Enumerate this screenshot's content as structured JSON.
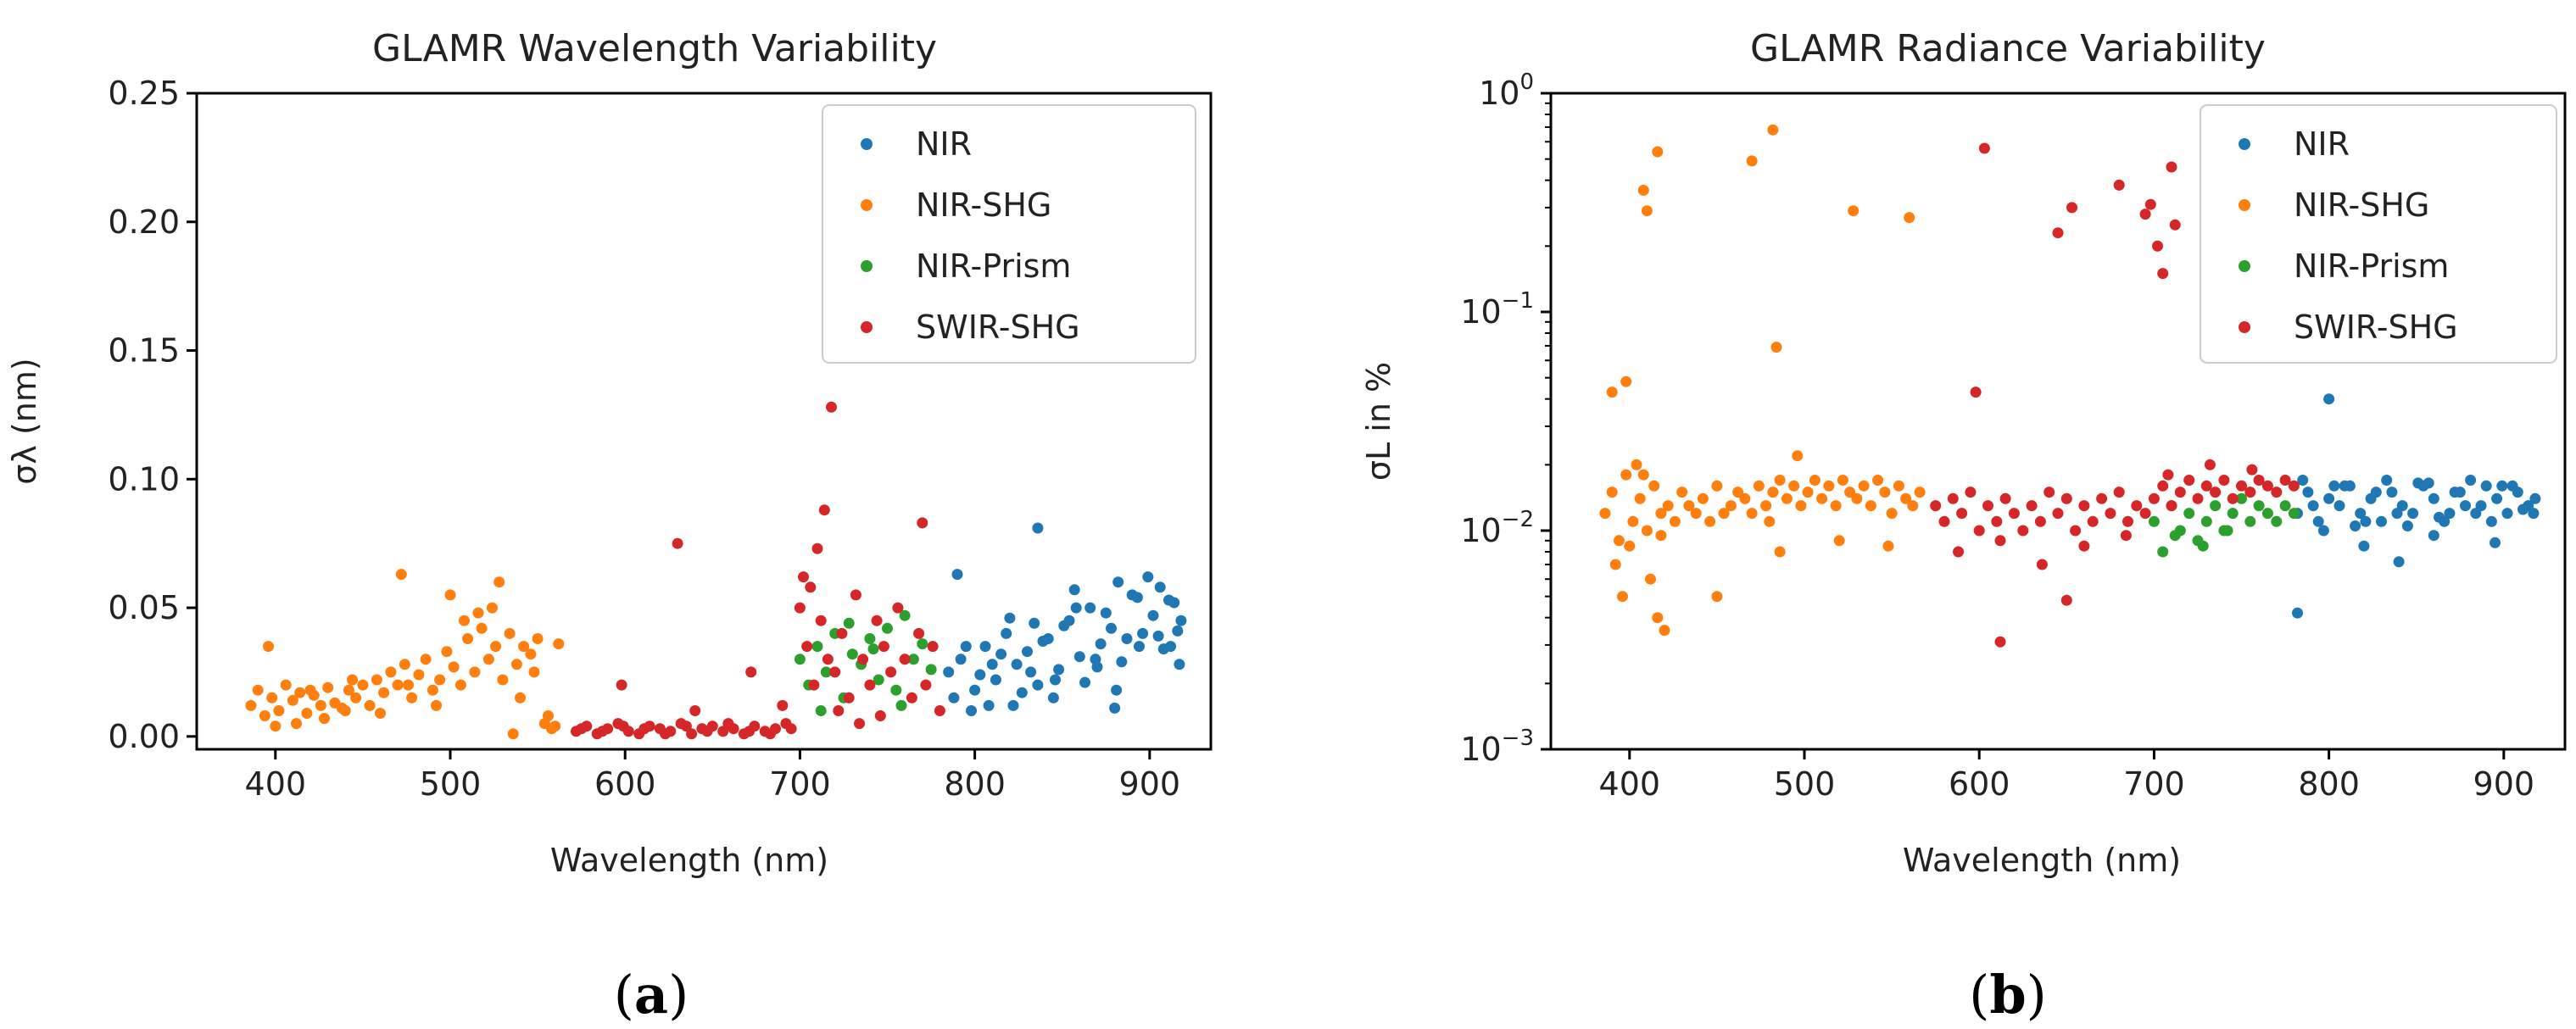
{
  "panels": [
    {
      "caption_open": "(",
      "caption_letter": "a",
      "caption_close": ")"
    },
    {
      "caption_open": "(",
      "caption_letter": "b",
      "caption_close": ")"
    }
  ],
  "chart_data": [
    {
      "type": "scatter",
      "title": "GLAMR Wavelength Variability",
      "xlabel": "Wavelength (nm)",
      "ylabel": "σλ (nm)",
      "xlim": [
        355,
        935
      ],
      "ylim": [
        -0.005,
        0.25
      ],
      "xticks": [
        400,
        500,
        600,
        700,
        800,
        900
      ],
      "yticks": [
        0.0,
        0.05,
        0.1,
        0.15,
        0.2,
        0.25
      ],
      "ytick_labels": [
        "0.00",
        "0.05",
        "0.10",
        "0.15",
        "0.20",
        "0.25"
      ],
      "legend_position": "top-right",
      "series": [
        {
          "name": "NIR",
          "color": "#1f77b4",
          "x": [
            785,
            792,
            800,
            806,
            812,
            818,
            824,
            830,
            836,
            842,
            848,
            854,
            860,
            866,
            872,
            878,
            884,
            890,
            896,
            902,
            908,
            914,
            918,
            788,
            798,
            810,
            822,
            834,
            846,
            858,
            870,
            882,
            894,
            906,
            916,
            803,
            815,
            827,
            839,
            851,
            863,
            875,
            887,
            899,
            911,
            795,
            808,
            820,
            832,
            845,
            857,
            869,
            881,
            893,
            905,
            917,
            836,
            790,
            880,
            912
          ],
          "y": [
            0.025,
            0.03,
            0.018,
            0.035,
            0.022,
            0.04,
            0.028,
            0.033,
            0.02,
            0.038,
            0.026,
            0.045,
            0.031,
            0.05,
            0.036,
            0.042,
            0.029,
            0.055,
            0.04,
            0.047,
            0.034,
            0.052,
            0.045,
            0.015,
            0.01,
            0.028,
            0.012,
            0.044,
            0.022,
            0.05,
            0.027,
            0.06,
            0.035,
            0.058,
            0.041,
            0.024,
            0.032,
            0.017,
            0.037,
            0.043,
            0.021,
            0.048,
            0.038,
            0.062,
            0.053,
            0.035,
            0.012,
            0.046,
            0.025,
            0.015,
            0.057,
            0.03,
            0.018,
            0.054,
            0.039,
            0.028,
            0.081,
            0.063,
            0.011,
            0.035
          ]
        },
        {
          "name": "NIR-SHG",
          "color": "#ff7f0e",
          "x": [
            386,
            390,
            394,
            398,
            402,
            406,
            410,
            414,
            418,
            422,
            426,
            430,
            434,
            438,
            442,
            446,
            450,
            454,
            458,
            462,
            466,
            470,
            474,
            478,
            482,
            486,
            490,
            494,
            498,
            502,
            506,
            510,
            514,
            518,
            522,
            526,
            530,
            534,
            538,
            542,
            546,
            550,
            554,
            558,
            562,
            396,
            412,
            428,
            444,
            460,
            476,
            492,
            508,
            524,
            540,
            556,
            400,
            420,
            440,
            472,
            500,
            516,
            528,
            536,
            548,
            560
          ],
          "y": [
            0.012,
            0.018,
            0.008,
            0.015,
            0.01,
            0.02,
            0.014,
            0.017,
            0.009,
            0.016,
            0.012,
            0.019,
            0.013,
            0.011,
            0.018,
            0.015,
            0.02,
            0.012,
            0.022,
            0.017,
            0.025,
            0.02,
            0.028,
            0.015,
            0.024,
            0.03,
            0.018,
            0.022,
            0.033,
            0.027,
            0.02,
            0.038,
            0.025,
            0.042,
            0.03,
            0.035,
            0.022,
            0.04,
            0.028,
            0.035,
            0.032,
            0.038,
            0.005,
            0.003,
            0.036,
            0.035,
            0.005,
            0.007,
            0.022,
            0.009,
            0.02,
            0.012,
            0.045,
            0.05,
            0.015,
            0.008,
            0.004,
            0.018,
            0.01,
            0.063,
            0.055,
            0.048,
            0.06,
            0.001,
            0.025,
            0.004
          ]
        },
        {
          "name": "NIR-Prism",
          "color": "#2ca02c",
          "x": [
            700,
            705,
            710,
            715,
            720,
            725,
            730,
            735,
            740,
            745,
            750,
            755,
            760,
            765,
            770,
            775,
            712,
            728,
            742,
            758
          ],
          "y": [
            0.03,
            0.02,
            0.035,
            0.025,
            0.04,
            0.015,
            0.032,
            0.028,
            0.038,
            0.022,
            0.042,
            0.018,
            0.047,
            0.03,
            0.036,
            0.026,
            0.01,
            0.044,
            0.034,
            0.012
          ]
        },
        {
          "name": "SWIR-SHG",
          "color": "#d62728",
          "x": [
            572,
            578,
            584,
            590,
            596,
            602,
            608,
            614,
            620,
            626,
            632,
            638,
            644,
            650,
            656,
            662,
            668,
            674,
            680,
            686,
            692,
            575,
            587,
            599,
            611,
            623,
            635,
            647,
            659,
            671,
            683,
            695,
            630,
            598,
            640,
            672,
            690,
            700,
            704,
            708,
            712,
            716,
            720,
            724,
            728,
            732,
            736,
            740,
            744,
            748,
            752,
            756,
            760,
            764,
            768,
            772,
            776,
            780,
            710,
            714,
            718,
            702,
            706,
            722,
            734,
            746,
            770
          ],
          "y": [
            0.002,
            0.004,
            0.001,
            0.003,
            0.005,
            0.002,
            0.001,
            0.004,
            0.003,
            0.002,
            0.005,
            0.001,
            0.003,
            0.004,
            0.002,
            0.003,
            0.001,
            0.004,
            0.002,
            0.003,
            0.005,
            0.003,
            0.002,
            0.004,
            0.003,
            0.001,
            0.004,
            0.002,
            0.005,
            0.002,
            0.001,
            0.003,
            0.075,
            0.02,
            0.01,
            0.025,
            0.012,
            0.05,
            0.035,
            0.02,
            0.045,
            0.03,
            0.025,
            0.04,
            0.015,
            0.055,
            0.03,
            0.02,
            0.045,
            0.035,
            0.025,
            0.05,
            0.03,
            0.015,
            0.04,
            0.02,
            0.035,
            0.01,
            0.073,
            0.088,
            0.128,
            0.062,
            0.058,
            0.01,
            0.005,
            0.008,
            0.083
          ]
        }
      ]
    },
    {
      "type": "scatter",
      "title": "GLAMR Radiance Variability",
      "xlabel": "Wavelength (nm)",
      "ylabel": "σL in %",
      "xscale": "linear",
      "yscale": "log",
      "xlim": [
        355,
        935
      ],
      "ylim": [
        0.001,
        1
      ],
      "xticks": [
        400,
        500,
        600,
        700,
        800,
        900
      ],
      "yticks": [
        0.001,
        0.01,
        0.1,
        1
      ],
      "ytick_bases": [
        "10",
        "10",
        "10",
        "10"
      ],
      "ytick_exps": [
        "−3",
        "−2",
        "−1",
        "0"
      ],
      "legend_position": "top-right",
      "series": [
        {
          "name": "NIR",
          "color": "#1f77b4",
          "x": [
            782,
            788,
            794,
            800,
            806,
            812,
            818,
            824,
            830,
            836,
            842,
            848,
            854,
            860,
            866,
            872,
            878,
            884,
            890,
            896,
            902,
            908,
            914,
            918,
            785,
            797,
            809,
            821,
            833,
            845,
            857,
            869,
            881,
            893,
            905,
            917,
            791,
            803,
            815,
            827,
            839,
            851,
            863,
            875,
            887,
            899,
            911,
            800,
            782,
            840,
            820,
            860,
            895
          ],
          "y": [
            0.012,
            0.015,
            0.011,
            0.014,
            0.013,
            0.016,
            0.012,
            0.014,
            0.011,
            0.015,
            0.013,
            0.012,
            0.016,
            0.014,
            0.011,
            0.015,
            0.013,
            0.012,
            0.016,
            0.014,
            0.012,
            0.015,
            0.013,
            0.014,
            0.017,
            0.01,
            0.016,
            0.011,
            0.017,
            0.0105,
            0.0165,
            0.012,
            0.017,
            0.011,
            0.016,
            0.012,
            0.013,
            0.016,
            0.0105,
            0.015,
            0.012,
            0.0165,
            0.0115,
            0.015,
            0.013,
            0.016,
            0.0125,
            0.04,
            0.0042,
            0.0072,
            0.0085,
            0.0095,
            0.0088
          ]
        },
        {
          "name": "NIR-SHG",
          "color": "#ff7f0e",
          "x": [
            386,
            390,
            394,
            398,
            402,
            406,
            410,
            414,
            418,
            422,
            426,
            430,
            434,
            438,
            442,
            446,
            450,
            454,
            458,
            462,
            466,
            470,
            474,
            478,
            482,
            486,
            490,
            494,
            498,
            502,
            506,
            510,
            514,
            518,
            522,
            526,
            530,
            534,
            538,
            542,
            546,
            550,
            554,
            558,
            562,
            566,
            392,
            396,
            404,
            408,
            412,
            416,
            420,
            480,
            400,
            418,
            450,
            486,
            496,
            520,
            548,
            408,
            410,
            416,
            470,
            482,
            528,
            560,
            390,
            398,
            484
          ],
          "y": [
            0.012,
            0.015,
            0.009,
            0.018,
            0.011,
            0.014,
            0.01,
            0.016,
            0.012,
            0.013,
            0.011,
            0.015,
            0.013,
            0.012,
            0.014,
            0.011,
            0.016,
            0.012,
            0.013,
            0.015,
            0.014,
            0.012,
            0.016,
            0.013,
            0.015,
            0.017,
            0.014,
            0.016,
            0.013,
            0.015,
            0.017,
            0.014,
            0.016,
            0.013,
            0.017,
            0.015,
            0.014,
            0.016,
            0.013,
            0.017,
            0.015,
            0.012,
            0.016,
            0.014,
            0.013,
            0.015,
            0.007,
            0.005,
            0.02,
            0.018,
            0.006,
            0.004,
            0.0035,
            0.011,
            0.0085,
            0.0095,
            0.005,
            0.008,
            0.022,
            0.009,
            0.0085,
            0.36,
            0.29,
            0.54,
            0.49,
            0.68,
            0.29,
            0.27,
            0.043,
            0.048,
            0.069
          ]
        },
        {
          "name": "NIR-Prism",
          "color": "#2ca02c",
          "x": [
            700,
            705,
            710,
            715,
            720,
            725,
            730,
            735,
            740,
            745,
            750,
            755,
            760,
            765,
            770,
            775,
            780,
            712,
            728,
            742
          ],
          "y": [
            0.011,
            0.008,
            0.013,
            0.01,
            0.012,
            0.009,
            0.011,
            0.013,
            0.01,
            0.012,
            0.014,
            0.011,
            0.013,
            0.012,
            0.011,
            0.013,
            0.012,
            0.0095,
            0.0085,
            0.01
          ]
        },
        {
          "name": "SWIR-SHG",
          "color": "#d62728",
          "x": [
            575,
            580,
            585,
            590,
            595,
            600,
            605,
            610,
            615,
            620,
            625,
            630,
            635,
            640,
            645,
            650,
            655,
            660,
            665,
            670,
            675,
            680,
            685,
            690,
            695,
            700,
            705,
            710,
            715,
            720,
            725,
            730,
            735,
            740,
            745,
            750,
            755,
            760,
            765,
            770,
            775,
            780,
            588,
            612,
            636,
            660,
            684,
            708,
            732,
            756,
            612,
            650,
            603,
            645,
            653,
            680,
            695,
            698,
            702,
            705,
            710,
            712,
            598
          ],
          "y": [
            0.013,
            0.011,
            0.014,
            0.012,
            0.015,
            0.01,
            0.013,
            0.011,
            0.014,
            0.012,
            0.01,
            0.013,
            0.011,
            0.015,
            0.012,
            0.014,
            0.01,
            0.013,
            0.011,
            0.014,
            0.012,
            0.015,
            0.011,
            0.013,
            0.012,
            0.014,
            0.016,
            0.013,
            0.015,
            0.017,
            0.014,
            0.016,
            0.015,
            0.017,
            0.014,
            0.016,
            0.015,
            0.017,
            0.016,
            0.015,
            0.017,
            0.016,
            0.008,
            0.009,
            0.007,
            0.0085,
            0.0095,
            0.018,
            0.02,
            0.019,
            0.0031,
            0.0048,
            0.56,
            0.23,
            0.3,
            0.38,
            0.28,
            0.31,
            0.2,
            0.15,
            0.46,
            0.25,
            0.043
          ]
        }
      ]
    }
  ]
}
